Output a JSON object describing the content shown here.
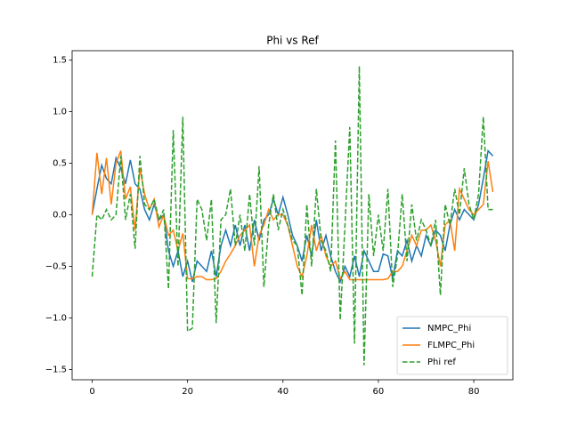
{
  "chart_data": {
    "type": "line",
    "title": "Phi vs Ref",
    "x": [
      0,
      1,
      2,
      3,
      4,
      5,
      6,
      7,
      8,
      9,
      10,
      11,
      12,
      13,
      14,
      15,
      16,
      17,
      18,
      19,
      20,
      21,
      22,
      23,
      24,
      25,
      26,
      27,
      28,
      29,
      30,
      31,
      32,
      33,
      34,
      35,
      36,
      37,
      38,
      39,
      40,
      41,
      42,
      43,
      44,
      45,
      46,
      47,
      48,
      49,
      50,
      51,
      52,
      53,
      54,
      55,
      56,
      57,
      58,
      59,
      60,
      61,
      62,
      63,
      64,
      65,
      66,
      67,
      68,
      69,
      70,
      71,
      72,
      73,
      74,
      75,
      76,
      77,
      78,
      79,
      80,
      81,
      82,
      83,
      84
    ],
    "series": [
      {
        "name": "NMPC_Phi",
        "color": "#1f77b4",
        "dash": false,
        "values": [
          0.0,
          0.25,
          0.48,
          0.35,
          0.3,
          0.55,
          0.45,
          0.3,
          0.53,
          0.3,
          0.25,
          0.05,
          -0.05,
          0.1,
          -0.05,
          0.0,
          -0.35,
          -0.5,
          -0.35,
          -0.6,
          -0.45,
          -0.65,
          -0.45,
          -0.5,
          -0.55,
          -0.35,
          -0.6,
          -0.3,
          -0.15,
          -0.3,
          -0.1,
          -0.3,
          -0.1,
          -0.35,
          -0.05,
          -0.25,
          -0.05,
          0.0,
          0.15,
          0.0,
          0.17,
          0.0,
          -0.2,
          -0.3,
          -0.45,
          -0.2,
          -0.4,
          -0.05,
          -0.35,
          -0.2,
          -0.4,
          -0.55,
          -0.65,
          -0.5,
          -0.6,
          -0.4,
          -0.6,
          -0.35,
          -0.45,
          -0.55,
          -0.55,
          -0.38,
          -0.4,
          -0.62,
          -0.35,
          -0.4,
          -0.25,
          -0.45,
          -0.3,
          -0.4,
          -0.2,
          -0.3,
          -0.15,
          -0.2,
          -0.35,
          -0.1,
          0.05,
          -0.05,
          0.05,
          0.0,
          -0.05,
          0.1,
          0.35,
          0.62,
          0.57
        ]
      },
      {
        "name": "FLMPC_Phi",
        "color": "#ff7f0e",
        "dash": false,
        "values": [
          0.0,
          0.6,
          0.2,
          0.55,
          0.1,
          0.5,
          0.62,
          0.15,
          0.27,
          -0.15,
          0.45,
          0.2,
          0.05,
          0.15,
          -0.12,
          0.0,
          -0.2,
          -0.15,
          -0.35,
          -0.18,
          -0.62,
          -0.62,
          -0.6,
          -0.6,
          -0.63,
          -0.63,
          -0.62,
          -0.55,
          -0.45,
          -0.38,
          -0.3,
          -0.2,
          -0.15,
          -0.1,
          -0.5,
          -0.2,
          -0.1,
          0.05,
          -0.05,
          0.0,
          0.0,
          -0.1,
          -0.3,
          -0.5,
          -0.6,
          -0.4,
          -0.1,
          -0.35,
          -0.2,
          -0.4,
          -0.5,
          -0.45,
          -0.62,
          -0.55,
          -0.63,
          -0.63,
          -0.63,
          -0.63,
          -0.63,
          -0.63,
          -0.63,
          -0.63,
          -0.62,
          -0.55,
          -0.55,
          -0.5,
          -0.35,
          -0.2,
          -0.3,
          -0.15,
          -0.15,
          -0.1,
          -0.25,
          -0.5,
          -0.1,
          -0.05,
          -0.35,
          0.25,
          0.15,
          0.05,
          0.0,
          0.05,
          0.1,
          0.52,
          0.22
        ]
      },
      {
        "name": "Phi ref",
        "color": "#2ca02c",
        "dash": true,
        "values": [
          -0.6,
          0.0,
          -0.05,
          0.05,
          -0.05,
          0.0,
          0.57,
          -0.05,
          0.2,
          -0.33,
          0.57,
          0.1,
          0.05,
          0.15,
          -0.05,
          0.05,
          -0.72,
          0.82,
          -0.5,
          0.95,
          -1.13,
          -1.1,
          0.15,
          0.05,
          -0.25,
          0.15,
          -1.05,
          -0.05,
          0.0,
          0.25,
          -0.3,
          0.0,
          -0.35,
          0.2,
          -0.3,
          0.47,
          -0.7,
          -0.1,
          0.2,
          -0.15,
          0.05,
          -0.1,
          -0.25,
          -0.3,
          -0.78,
          0.1,
          -0.5,
          0.25,
          -0.25,
          -0.35,
          -0.55,
          0.72,
          -1.02,
          -0.1,
          0.85,
          -1.25,
          1.44,
          -1.46,
          0.2,
          -0.4,
          0.0,
          -0.35,
          0.25,
          -0.7,
          -0.4,
          0.2,
          -0.45,
          0.1,
          -0.25,
          -0.05,
          -0.15,
          -0.3,
          -0.05,
          -0.78,
          0.1,
          -0.1,
          0.25,
          0.0,
          0.45,
          0.1,
          -0.05,
          0.2,
          0.95,
          0.05,
          0.05
        ]
      }
    ],
    "xlim": [
      -4.2,
      88.2
    ],
    "xticks": [
      0,
      20,
      40,
      60,
      80
    ],
    "ylim": [
      -1.6,
      1.59
    ],
    "yticks": [
      {
        "value": -1.5,
        "label": "−1.5"
      },
      {
        "value": -1.0,
        "label": "−1.0"
      },
      {
        "value": -0.5,
        "label": "−0.5"
      },
      {
        "value": 0,
        "label": "0.0"
      },
      {
        "value": 0.5,
        "label": "0.5"
      },
      {
        "value": 1.0,
        "label": "1.0"
      },
      {
        "value": 1.5,
        "label": "1.5"
      }
    ],
    "legend": "lower right",
    "grid": false
  }
}
